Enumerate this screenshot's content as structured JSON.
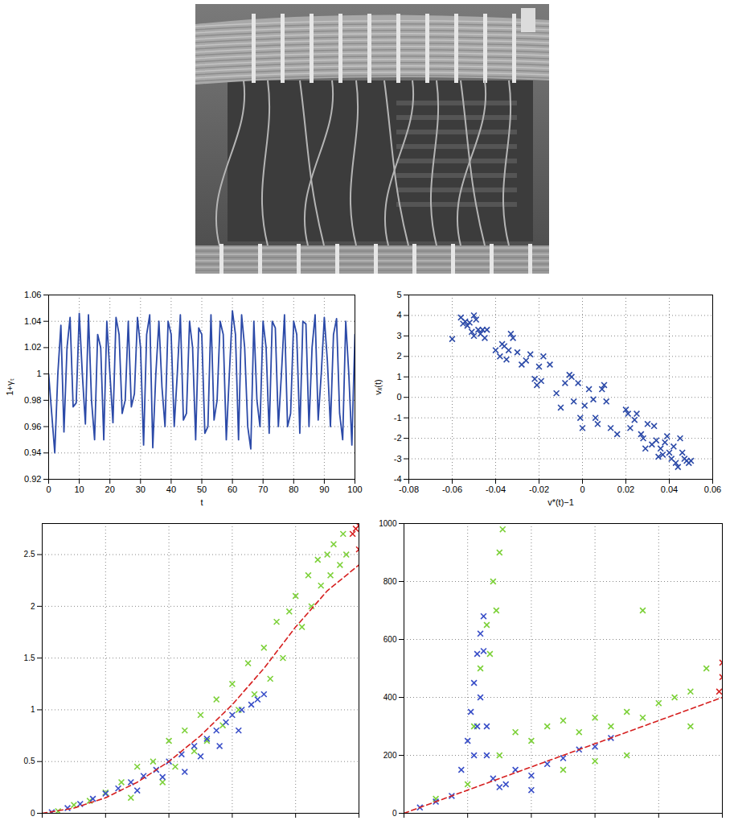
{
  "chart_data": [
    {
      "type": "line",
      "xlabel": "t",
      "ylabel": "1+γₜ",
      "color": "#2c4aa8",
      "x": [
        0,
        1,
        2,
        3,
        4,
        5,
        6,
        7,
        8,
        9,
        10,
        11,
        12,
        13,
        14,
        15,
        16,
        17,
        18,
        19,
        20,
        21,
        22,
        23,
        24,
        25,
        26,
        27,
        28,
        29,
        30,
        31,
        32,
        33,
        34,
        35,
        36,
        37,
        38,
        39,
        40,
        41,
        42,
        43,
        44,
        45,
        46,
        47,
        48,
        49,
        50,
        51,
        52,
        53,
        54,
        55,
        56,
        57,
        58,
        59,
        60,
        61,
        62,
        63,
        64,
        65,
        66,
        67,
        68,
        69,
        70,
        71,
        72,
        73,
        74,
        75,
        76,
        77,
        78,
        79,
        80,
        81,
        82,
        83,
        84,
        85,
        86,
        87,
        88,
        89,
        90,
        91,
        92,
        93,
        94,
        95,
        96,
        97,
        98,
        99,
        100
      ],
      "values": [
        1.0,
        0.97,
        0.94,
        1.0,
        1.037,
        0.956,
        1.02,
        1.043,
        0.975,
        0.978,
        1.046,
        1.0,
        0.962,
        1.045,
        0.98,
        0.95,
        1.03,
        1.02,
        0.95,
        1.04,
        1.0,
        0.963,
        1.043,
        1.03,
        0.97,
        0.98,
        1.04,
        0.975,
        0.985,
        1.043,
        1.02,
        0.946,
        1.03,
        1.045,
        0.944,
        1.0,
        1.04,
        0.99,
        0.96,
        1.04,
        1.03,
        0.96,
        1.0,
        1.045,
        0.965,
        0.97,
        1.04,
        1.02,
        0.95,
        1.035,
        1.03,
        0.955,
        0.96,
        1.045,
        0.965,
        0.98,
        1.04,
        1.03,
        0.95,
        1.0,
        1.048,
        1.03,
        0.95,
        1.045,
        1.02,
        0.96,
        0.943,
        1.04,
        0.98,
        0.96,
        1.04,
        1.02,
        0.955,
        1.04,
        1.035,
        0.96,
        1.0,
        1.045,
        0.96,
        0.97,
        1.04,
        1.03,
        0.955,
        1.04,
        1.038,
        0.96,
        1.02,
        1.045,
        0.965,
        1.0,
        1.043,
        1.01,
        0.96,
        1.03,
        1.042,
        0.97,
        0.95,
        1.04,
        1.0,
        0.946,
        1.03
      ],
      "xlim": [
        0,
        100
      ],
      "ylim": [
        0.92,
        1.06
      ],
      "xticks": [
        0,
        10,
        20,
        30,
        40,
        50,
        60,
        70,
        80,
        90,
        100
      ],
      "yticks": [
        0.92,
        0.94,
        0.96,
        0.98,
        1,
        1.02,
        1.04,
        1.06
      ],
      "grid": true
    },
    {
      "type": "scatter",
      "xlabel": "v*(t)−1",
      "ylabel": "vₓ(t)",
      "color": "#2c4aa8",
      "marker": "x",
      "x": [
        -0.06,
        -0.056,
        -0.055,
        -0.054,
        -0.053,
        -0.052,
        -0.051,
        -0.05,
        -0.05,
        -0.049,
        -0.048,
        -0.047,
        -0.046,
        -0.045,
        -0.044,
        -0.04,
        -0.038,
        -0.037,
        -0.036,
        -0.035,
        -0.034,
        -0.033,
        -0.032,
        -0.03,
        -0.028,
        -0.026,
        -0.024,
        -0.022,
        -0.021,
        -0.02,
        -0.019,
        -0.018,
        -0.015,
        -0.012,
        -0.01,
        -0.008,
        -0.006,
        -0.005,
        -0.004,
        -0.002,
        -0.001,
        0,
        0.001,
        0.003,
        0.005,
        0.006,
        0.007,
        0.009,
        0.01,
        0.011,
        0.013,
        0.016,
        0.02,
        0.021,
        0.022,
        0.024,
        0.025,
        0.027,
        0.028,
        0.029,
        0.03,
        0.032,
        0.033,
        0.034,
        0.035,
        0.036,
        0.037,
        0.038,
        0.039,
        0.04,
        0.041,
        0.042,
        0.043,
        0.044,
        0.045,
        0.046,
        0.047,
        0.048,
        0.049,
        0.05
      ],
      "values": [
        2.85,
        3.9,
        3.6,
        3.7,
        3.5,
        3.65,
        3.2,
        3.0,
        4.0,
        3.8,
        3.3,
        3.1,
        3.3,
        2.9,
        3.3,
        2.3,
        2.0,
        2.6,
        2.5,
        1.85,
        2.3,
        3.1,
        2.9,
        2.2,
        1.6,
        1.8,
        2.1,
        0.9,
        0.6,
        1.5,
        0.8,
        2.0,
        1.6,
        0.2,
        -0.5,
        0.7,
        1.1,
        1.0,
        -0.2,
        0.7,
        -1.0,
        -1.5,
        -0.4,
        0.4,
        -0.1,
        -1.0,
        -1.3,
        0.4,
        0.6,
        -0.2,
        -1.5,
        -1.8,
        -0.6,
        -0.8,
        -1.5,
        -1.1,
        -0.8,
        -1.8,
        -2.0,
        -2.5,
        -1.3,
        -2.3,
        -1.4,
        -2.1,
        -2.9,
        -2.5,
        -2.8,
        -2.2,
        -1.9,
        -2.7,
        -3.0,
        -2.4,
        -3.2,
        -3.4,
        -2.0,
        -2.7,
        -3.0,
        -3.1,
        -3.2,
        -3.1
      ],
      "xlim": [
        -0.08,
        0.06
      ],
      "ylim": [
        -4,
        5
      ],
      "xticks": [
        -0.08,
        -0.06,
        -0.04,
        -0.02,
        0,
        0.02,
        0.04,
        0.06
      ],
      "yticks": [
        -4,
        -3,
        -2,
        -1,
        0,
        1,
        2,
        3,
        4,
        5
      ],
      "grid": true
    },
    {
      "type": "scatter",
      "tick_labels": "y",
      "grid": true,
      "xlim": [
        0,
        100
      ],
      "ylim": [
        0,
        2.8
      ],
      "xticks": [
        0,
        20,
        40,
        60,
        80,
        100
      ],
      "yticks": [
        0,
        0.5,
        1,
        1.5,
        2,
        2.5
      ],
      "series": [
        {
          "type": "scatter",
          "color": "#7dd13a",
          "marker": "x",
          "x": [
            5,
            10,
            15,
            20,
            25,
            28,
            30,
            35,
            38,
            40,
            42,
            45,
            48,
            50,
            52,
            55,
            57,
            60,
            62,
            65,
            67,
            70,
            72,
            74,
            76,
            78,
            80,
            82,
            84,
            85,
            87,
            88,
            90,
            91,
            92,
            94,
            95,
            96
          ],
          "values": [
            0.02,
            0.08,
            0.12,
            0.2,
            0.3,
            0.15,
            0.45,
            0.5,
            0.3,
            0.7,
            0.45,
            0.8,
            0.6,
            0.95,
            0.7,
            1.1,
            0.85,
            1.25,
            1.0,
            1.45,
            1.15,
            1.6,
            1.3,
            1.85,
            1.5,
            1.95,
            2.1,
            1.8,
            2.3,
            2.0,
            2.45,
            2.2,
            2.5,
            2.3,
            2.6,
            2.4,
            2.7,
            2.5
          ]
        },
        {
          "type": "scatter",
          "color": "#3a4fc8",
          "marker": "x",
          "x": [
            3,
            8,
            12,
            16,
            20,
            24,
            28,
            32,
            36,
            40,
            44,
            48,
            52,
            55,
            58,
            60,
            63,
            66,
            68,
            70,
            45,
            50,
            56,
            62,
            30,
            38
          ],
          "values": [
            0.01,
            0.05,
            0.09,
            0.14,
            0.19,
            0.24,
            0.3,
            0.36,
            0.42,
            0.5,
            0.57,
            0.65,
            0.72,
            0.8,
            0.88,
            0.95,
            1.0,
            1.05,
            1.1,
            1.15,
            0.4,
            0.55,
            0.65,
            0.8,
            0.22,
            0.35
          ]
        },
        {
          "type": "line",
          "color": "#d62020",
          "line_style": "dashed",
          "x": [
            0,
            10,
            20,
            30,
            40,
            50,
            60,
            70,
            80,
            90,
            100
          ],
          "values": [
            0,
            0.05,
            0.15,
            0.3,
            0.5,
            0.75,
            1.05,
            1.4,
            1.8,
            2.15,
            2.4
          ]
        },
        {
          "type": "scatter",
          "color": "#d62020",
          "marker": "x",
          "x": [
            98,
            99,
            100,
            100
          ],
          "values": [
            2.7,
            2.75,
            2.78,
            2.55
          ]
        }
      ]
    },
    {
      "type": "scatter",
      "tick_labels": "y",
      "grid": true,
      "xlim": [
        0,
        100
      ],
      "ylim": [
        0,
        1000
      ],
      "xticks": [
        0,
        20,
        40,
        60,
        80,
        100
      ],
      "yticks": [
        0,
        200,
        400,
        600,
        800,
        1000
      ],
      "series": [
        {
          "type": "scatter",
          "color": "#7dd13a",
          "marker": "x",
          "x": [
            22,
            24,
            26,
            28,
            30,
            31,
            29,
            27,
            10,
            20,
            30,
            35,
            40,
            45,
            50,
            55,
            60,
            65,
            70,
            75,
            80,
            85,
            90,
            95,
            60,
            70,
            50,
            90,
            75
          ],
          "values": [
            300,
            500,
            650,
            800,
            900,
            980,
            700,
            550,
            50,
            100,
            200,
            280,
            250,
            300,
            320,
            280,
            330,
            300,
            350,
            330,
            380,
            400,
            420,
            500,
            180,
            200,
            150,
            300,
            700
          ]
        },
        {
          "type": "scatter",
          "color": "#3a4fc8",
          "marker": "x",
          "x": [
            18,
            20,
            21,
            22,
            23,
            24,
            25,
            25,
            24,
            23,
            22,
            26,
            26,
            5,
            10,
            15,
            28,
            32,
            35,
            40,
            45,
            50,
            55,
            60,
            65,
            30,
            40
          ],
          "values": [
            150,
            250,
            350,
            450,
            550,
            620,
            680,
            560,
            400,
            300,
            200,
            300,
            200,
            20,
            40,
            60,
            120,
            100,
            150,
            130,
            170,
            190,
            220,
            230,
            260,
            90,
            80
          ]
        },
        {
          "type": "line",
          "color": "#d62020",
          "line_style": "dashed",
          "x": [
            0,
            20,
            40,
            60,
            80,
            100
          ],
          "values": [
            0,
            80,
            160,
            240,
            320,
            400
          ]
        },
        {
          "type": "scatter",
          "color": "#d62020",
          "marker": "x",
          "x": [
            99,
            100,
            100
          ],
          "values": [
            420,
            470,
            520
          ]
        }
      ]
    }
  ]
}
